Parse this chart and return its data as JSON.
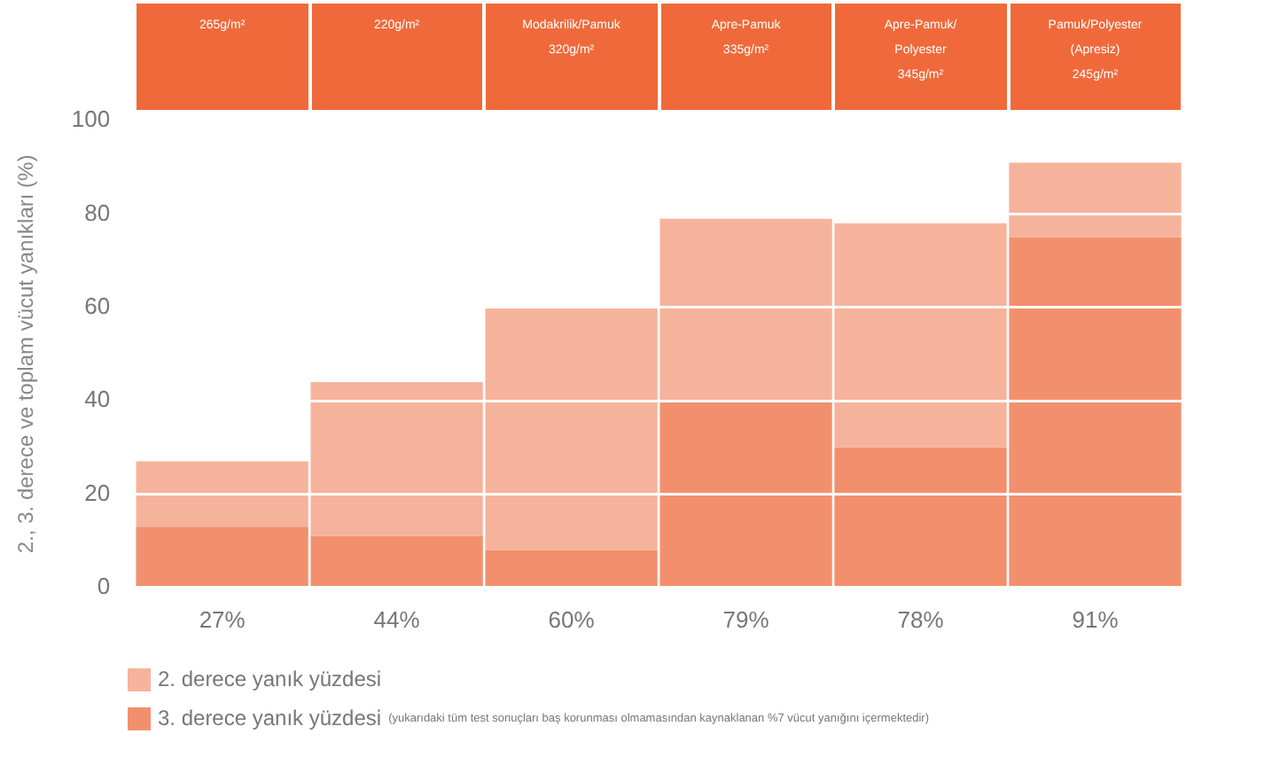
{
  "chart_data": {
    "type": "bar",
    "stacked": true,
    "ylabel": "2., 3. derece ve toplam vücut yanıkları (%)",
    "categories": [
      "265g/m²",
      "220g/m²",
      "Modakrilik/Pamuk\n320g/m²",
      "Apre-Pamuk\n335g/m²",
      "Apre-Pamuk/\nPolyester\n345g/m²",
      "Pamuk/Polyester\n(Apresiz)\n245g/m²"
    ],
    "series": [
      {
        "name": "3. derece yanık yüzdesi",
        "color": "#f2906e",
        "values": [
          13,
          11,
          8,
          40,
          30,
          75
        ]
      },
      {
        "name": "2. derece yanık yüzdesi",
        "color": "#f6b39c",
        "values": [
          14,
          33,
          52,
          39,
          48,
          16
        ]
      }
    ],
    "totals": [
      "27%",
      "44%",
      "60%",
      "79%",
      "78%",
      "91%"
    ],
    "ylim": [
      0,
      100
    ],
    "yticks": [
      0,
      20,
      40,
      60,
      80,
      100
    ],
    "grid": "y",
    "legend": "bottom",
    "annotations": [
      "(yukarıdaki tüm test sonuçları baş korunması olmamasından kaynaklanan %7 vücut yanığını içermektedir)"
    ]
  }
}
